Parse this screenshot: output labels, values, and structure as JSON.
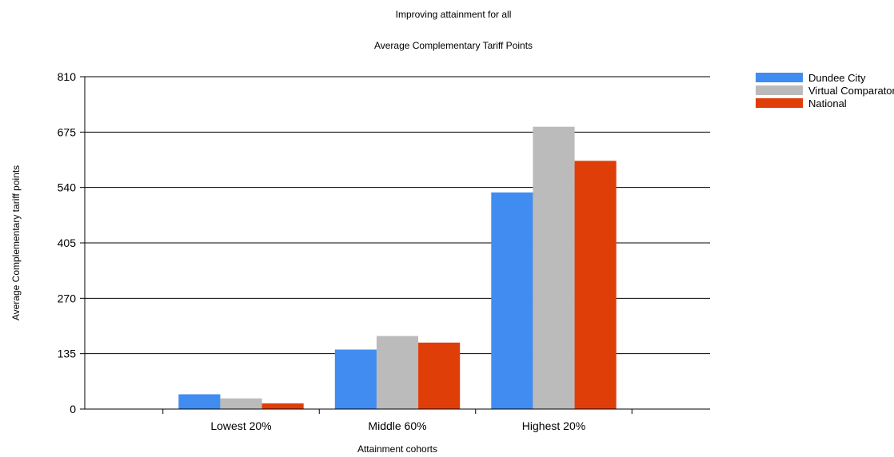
{
  "chart_data": {
    "type": "bar",
    "title": "Improving attainment for all",
    "subtitle": "Average Complementary Tariff Points",
    "xlabel": "Attainment cohorts",
    "ylabel": "Average Complementary tariff points",
    "categories": [
      "Lowest 20%",
      "Middle 60%",
      "Highest 20%"
    ],
    "series": [
      {
        "name": "Dundee City",
        "color": "#418CF0",
        "values": [
          36,
          145,
          528
        ]
      },
      {
        "name": "Virtual Comparator",
        "color": "#BBBBBB",
        "values": [
          26,
          178,
          688
        ]
      },
      {
        "name": "National",
        "color": "#E03E08",
        "values": [
          14,
          162,
          605
        ]
      }
    ],
    "ylim": [
      0,
      810
    ],
    "yticks": [
      0,
      135,
      270,
      405,
      540,
      675,
      810
    ],
    "grid": true,
    "legend_position": "top-right"
  }
}
